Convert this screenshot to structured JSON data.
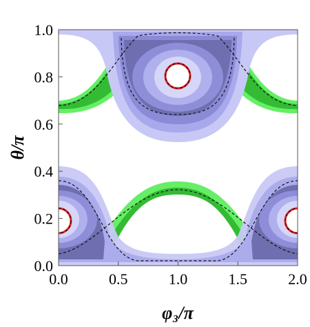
{
  "chart_data": {
    "type": "region",
    "x_label": "φ₃/π",
    "y_label": "θ/π",
    "xlim": [
      0,
      2
    ],
    "ylim": [
      0,
      1
    ],
    "xticks": [
      {
        "value": 0,
        "label": "0.0"
      },
      {
        "value": 0.5,
        "label": "0.5"
      },
      {
        "value": 1,
        "label": "1.0"
      },
      {
        "value": 1.5,
        "label": "1.5"
      },
      {
        "value": 2,
        "label": "2.0"
      }
    ],
    "yticks": [
      {
        "value": 0,
        "label": "0.0"
      },
      {
        "value": 0.2,
        "label": "0.2"
      },
      {
        "value": 0.4,
        "label": "0.4"
      },
      {
        "value": 0.6,
        "label": "0.6"
      },
      {
        "value": 0.8,
        "label": "0.8"
      },
      {
        "value": 1,
        "label": "1.0"
      }
    ]
  }
}
